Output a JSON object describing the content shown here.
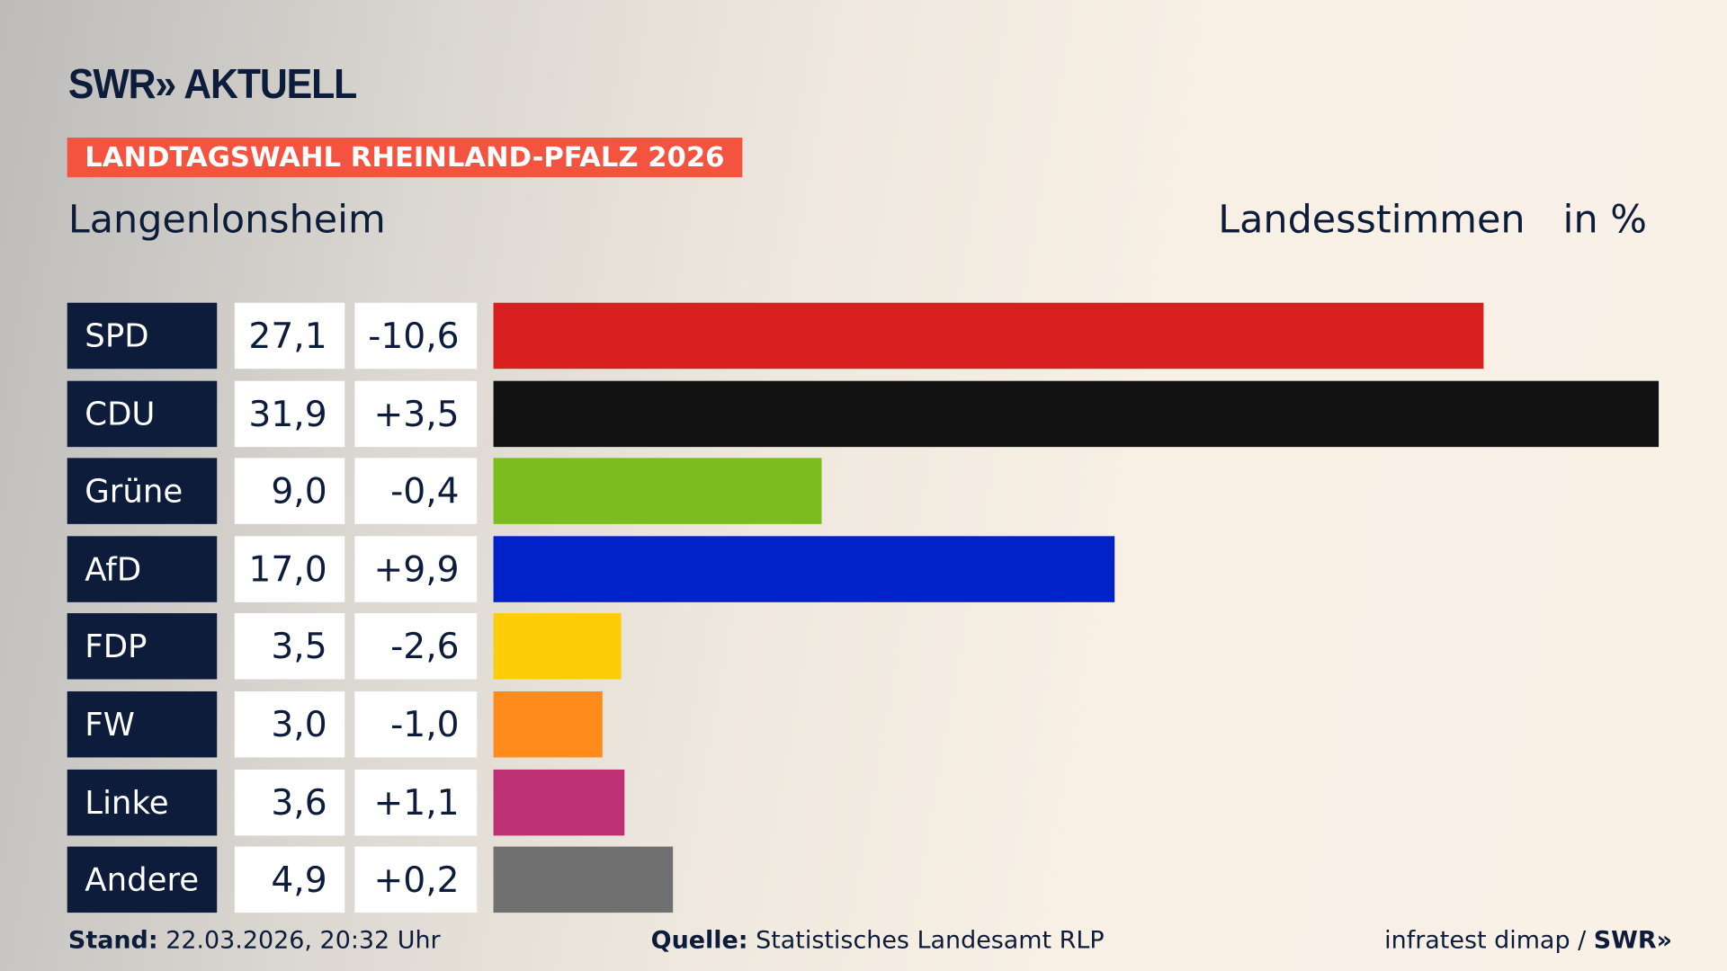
{
  "header": {
    "logo": "SWR» AKTUELL",
    "badge": "LANDTAGSWAHL RHEINLAND-PFALZ 2026",
    "place": "Langenlonsheim",
    "vote_type": "Landesstimmen",
    "unit": "in %"
  },
  "chart_data": {
    "type": "bar",
    "orientation": "horizontal",
    "categories": [
      "SPD",
      "CDU",
      "Grüne",
      "AfD",
      "FDP",
      "FW",
      "Linke",
      "Andere"
    ],
    "values": [
      27.1,
      31.9,
      9.0,
      17.0,
      3.5,
      3.0,
      3.6,
      4.9
    ],
    "value_labels": [
      "27,1",
      "31,9",
      "9,0",
      "17,0",
      "3,5",
      "3,0",
      "3,6",
      "4,9"
    ],
    "diff_labels": [
      "-10,6",
      "+3,5",
      "-0,4",
      "+9,9",
      "-2,6",
      "-1,0",
      "+1,1",
      "+0,2"
    ],
    "colors": [
      "#d91f20",
      "#121212",
      "#7bbd1d",
      "#0022c8",
      "#ffcc0a",
      "#ff8c1a",
      "#bc3173",
      "#707070"
    ],
    "xlim": [
      0,
      31.9
    ],
    "grid": false
  },
  "footer": {
    "stand_label": "Stand:",
    "stand_value": "22.03.2026, 20:32 Uhr",
    "quelle_label": "Quelle:",
    "quelle_value": "Statistisches Landesamt RLP",
    "credit": "infratest dimap / ",
    "credit_logo": "SWR»"
  }
}
